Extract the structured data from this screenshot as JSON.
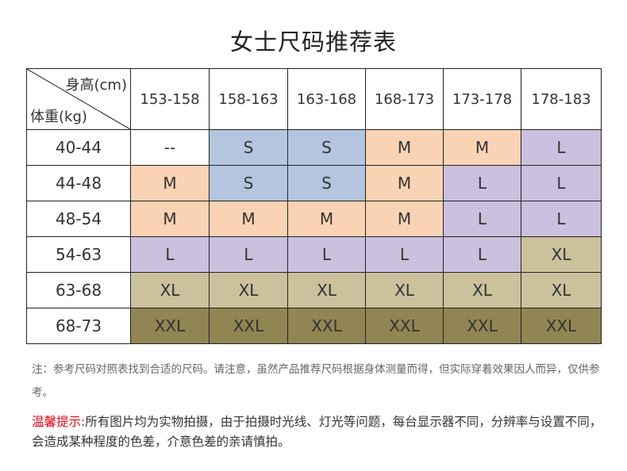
{
  "title": "女士尺码推荐表",
  "table": {
    "corner_top_label": "身高(cm)",
    "corner_bottom_label": "体重(kg)",
    "height_ranges": [
      "153-158",
      "158-163",
      "163-168",
      "168-173",
      "173-178",
      "178-183"
    ],
    "rows": [
      {
        "weight": "40-44",
        "sizes": [
          "--",
          "S",
          "S",
          "M",
          "M",
          "L"
        ]
      },
      {
        "weight": "44-48",
        "sizes": [
          "M",
          "S",
          "S",
          "M",
          "L",
          "L"
        ]
      },
      {
        "weight": "48-54",
        "sizes": [
          "M",
          "M",
          "M",
          "M",
          "L",
          "L"
        ]
      },
      {
        "weight": "54-63",
        "sizes": [
          "L",
          "L",
          "L",
          "L",
          "L",
          "XL"
        ]
      },
      {
        "weight": "63-68",
        "sizes": [
          "XL",
          "XL",
          "XL",
          "XL",
          "XL",
          "XL"
        ]
      },
      {
        "weight": "68-73",
        "sizes": [
          "XXL",
          "XXL",
          "XXL",
          "XXL",
          "XXL",
          "XXL"
        ]
      }
    ],
    "size_colors": {
      "--": "#ffffff",
      "S": "#b4c6df",
      "M": "#f9d3b4",
      "L": "#cbc0dd",
      "XL": "#cbc19c",
      "XXL": "#918553"
    }
  },
  "note": "注：参考尺码对照表找到合适的尺码。请注意，虽然产品推荐尺码根据身体测量而得，但实际穿着效果因人而异，仅供参考。",
  "warning": {
    "label": "温馨提示:",
    "text": "所有图片均为实物拍摄，由于拍摄时光线、灯光等问题，每台显示器不同，分辨率与设置不同，会造成某种程度的色差，介意色差的亲请慎拍。",
    "label_color": "#e60012"
  }
}
